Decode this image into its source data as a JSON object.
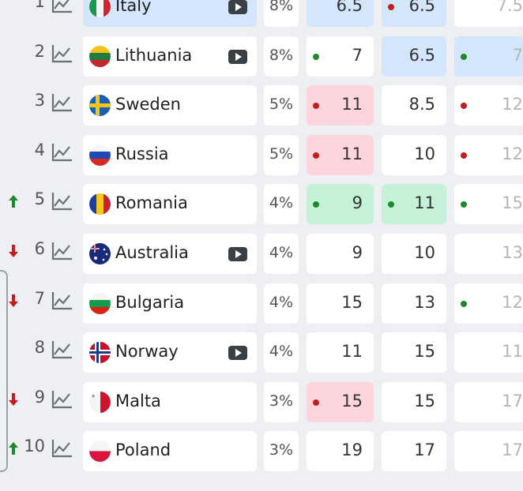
{
  "colors": {
    "up": "#1c8a2c",
    "down": "#c41c1c",
    "highlight_blue": "#d4e6fc",
    "highlight_red": "#fcd6dc",
    "highlight_green": "#c5f2d6"
  },
  "rows": [
    {
      "rank": "1",
      "trend": "none",
      "country": "Italy",
      "flag": "italy-flag-icon",
      "video": true,
      "percent": "8%",
      "odds1": {
        "value": "6.5",
        "dot": "",
        "bg": "blue"
      },
      "odds2": {
        "value": "6.5",
        "dot": "red",
        "bg": "blue"
      },
      "odds3": {
        "value": "7.5",
        "dot": "",
        "bg": ""
      }
    },
    {
      "rank": "2",
      "trend": "none",
      "country": "Lithuania",
      "flag": "lithuania-flag-icon",
      "video": true,
      "percent": "8%",
      "odds1": {
        "value": "7",
        "dot": "green",
        "bg": ""
      },
      "odds2": {
        "value": "6.5",
        "dot": "",
        "bg": "blue"
      },
      "odds3": {
        "value": "7",
        "dot": "green",
        "bg": "blue"
      }
    },
    {
      "rank": "3",
      "trend": "none",
      "country": "Sweden",
      "flag": "sweden-flag-icon",
      "video": false,
      "percent": "5%",
      "odds1": {
        "value": "11",
        "dot": "red",
        "bg": "red"
      },
      "odds2": {
        "value": "8.5",
        "dot": "",
        "bg": ""
      },
      "odds3": {
        "value": "12",
        "dot": "red",
        "bg": ""
      }
    },
    {
      "rank": "4",
      "trend": "none",
      "country": "Russia",
      "flag": "russia-flag-icon",
      "video": false,
      "percent": "5%",
      "odds1": {
        "value": "11",
        "dot": "red",
        "bg": "red"
      },
      "odds2": {
        "value": "10",
        "dot": "",
        "bg": ""
      },
      "odds3": {
        "value": "12",
        "dot": "red",
        "bg": ""
      }
    },
    {
      "rank": "5",
      "trend": "up",
      "country": "Romania",
      "flag": "romania-flag-icon",
      "video": false,
      "percent": "4%",
      "odds1": {
        "value": "9",
        "dot": "green",
        "bg": "green"
      },
      "odds2": {
        "value": "11",
        "dot": "green",
        "bg": "green"
      },
      "odds3": {
        "value": "15",
        "dot": "green",
        "bg": ""
      }
    },
    {
      "rank": "6",
      "trend": "down",
      "country": "Australia",
      "flag": "australia-flag-icon",
      "video": true,
      "percent": "4%",
      "odds1": {
        "value": "9",
        "dot": "",
        "bg": ""
      },
      "odds2": {
        "value": "10",
        "dot": "",
        "bg": ""
      },
      "odds3": {
        "value": "13",
        "dot": "",
        "bg": ""
      }
    },
    {
      "rank": "7",
      "trend": "down",
      "country": "Bulgaria",
      "flag": "bulgaria-flag-icon",
      "video": false,
      "percent": "4%",
      "odds1": {
        "value": "15",
        "dot": "",
        "bg": ""
      },
      "odds2": {
        "value": "13",
        "dot": "",
        "bg": ""
      },
      "odds3": {
        "value": "12",
        "dot": "green",
        "bg": ""
      }
    },
    {
      "rank": "8",
      "trend": "none",
      "country": "Norway",
      "flag": "norway-flag-icon",
      "video": true,
      "percent": "4%",
      "odds1": {
        "value": "11",
        "dot": "",
        "bg": ""
      },
      "odds2": {
        "value": "15",
        "dot": "",
        "bg": ""
      },
      "odds3": {
        "value": "11",
        "dot": "",
        "bg": ""
      }
    },
    {
      "rank": "9",
      "trend": "down",
      "country": "Malta",
      "flag": "malta-flag-icon",
      "video": false,
      "percent": "3%",
      "odds1": {
        "value": "15",
        "dot": "red",
        "bg": "red"
      },
      "odds2": {
        "value": "15",
        "dot": "",
        "bg": ""
      },
      "odds3": {
        "value": "17",
        "dot": "",
        "bg": ""
      }
    },
    {
      "rank": "10",
      "trend": "up",
      "country": "Poland",
      "flag": "poland-flag-icon",
      "video": false,
      "percent": "3%",
      "odds1": {
        "value": "19",
        "dot": "",
        "bg": ""
      },
      "odds2": {
        "value": "17",
        "dot": "",
        "bg": ""
      },
      "odds3": {
        "value": "17",
        "dot": "",
        "bg": ""
      }
    }
  ]
}
